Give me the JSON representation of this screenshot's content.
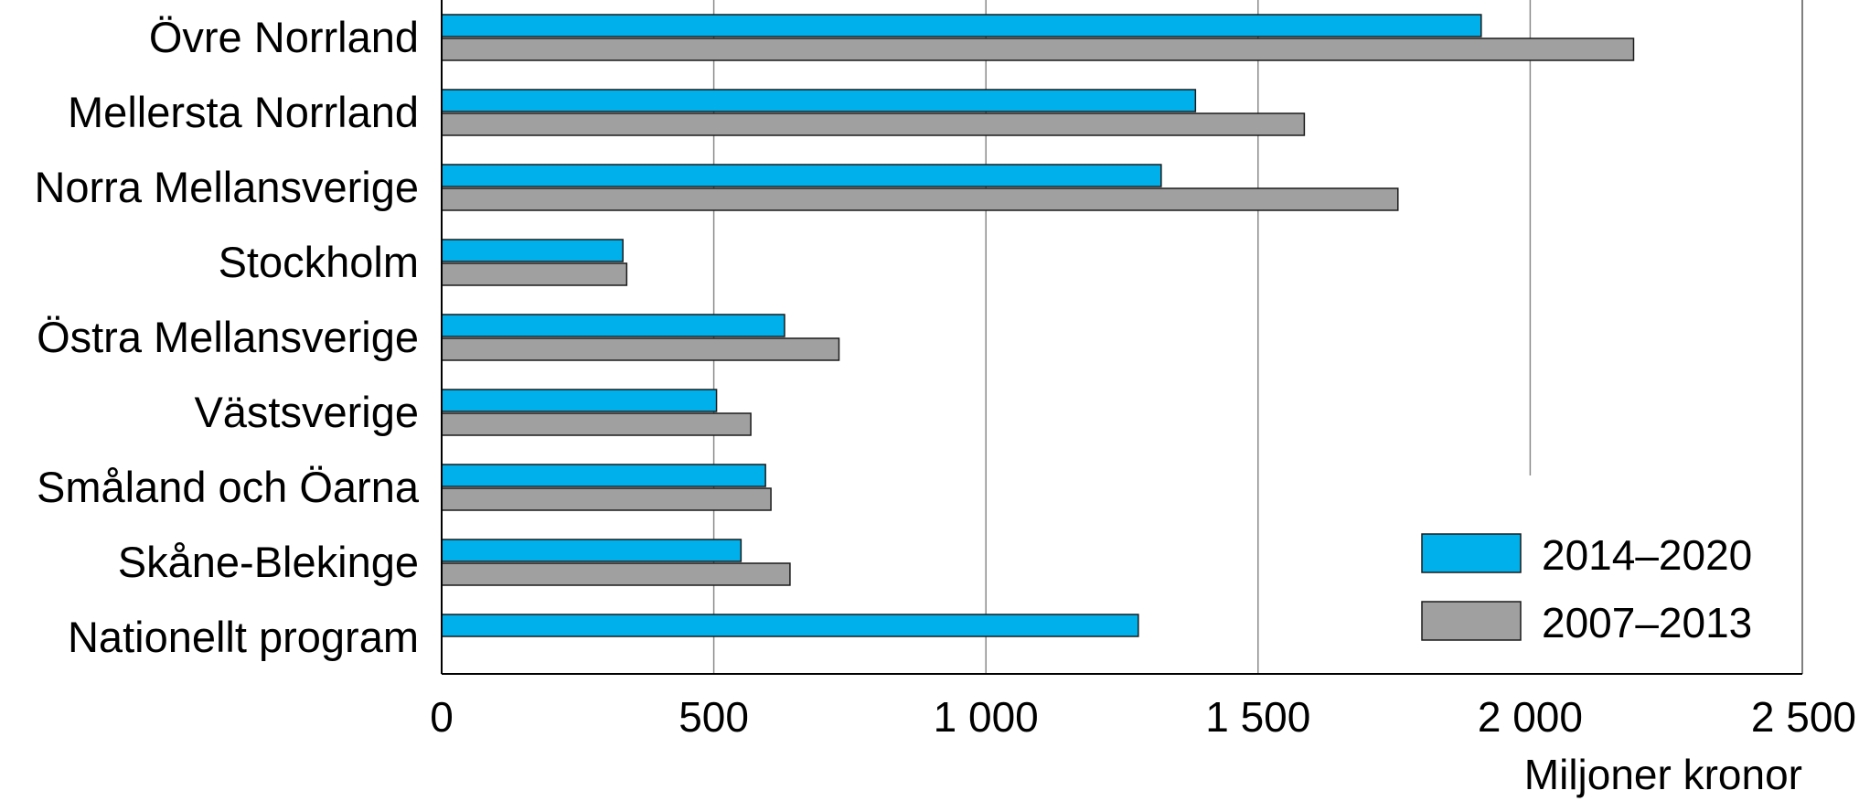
{
  "chart_data": {
    "type": "bar",
    "orientation": "horizontal",
    "categories": [
      "Övre Norrland",
      "Mellersta Norrland",
      "Norra Mellansverige",
      "Stockholm",
      "Östra Mellansverige",
      "Västsverige",
      "Småland och Öarna",
      "Skåne-Blekinge",
      "Nationellt program"
    ],
    "series": [
      {
        "name": "2014–2020",
        "color": "#00b0eb",
        "values": [
          1910,
          1385,
          1322,
          333,
          630,
          505,
          595,
          550,
          1280
        ]
      },
      {
        "name": "2007–2013",
        "color": "#a0a0a0",
        "values": [
          2190,
          1585,
          1757,
          340,
          730,
          568,
          605,
          640,
          null
        ]
      }
    ],
    "x_ticks": [
      "0",
      "500",
      "1 000",
      "1 500",
      "2 000",
      "2 500"
    ],
    "xlim": [
      0,
      2500
    ],
    "xlabel": "Miljoner kronor",
    "grid": "vertical",
    "legend_position": "bottom-right"
  }
}
